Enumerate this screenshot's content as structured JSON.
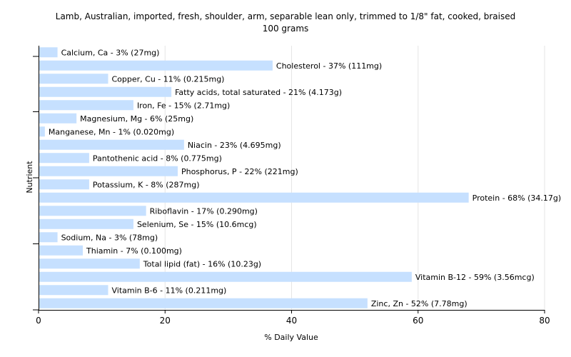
{
  "chart_data": {
    "type": "bar",
    "orientation": "horizontal",
    "title_line1": "Lamb, Australian, imported, fresh, shoulder, arm, separable lean only,   trimmed to 1/8\" fat, cooked, braised",
    "title_line2": "100 grams",
    "xlabel": "% Daily Value",
    "ylabel": "Nutrient",
    "xlim": [
      0,
      80
    ],
    "xticks": [
      0,
      20,
      40,
      60,
      80
    ],
    "grid": true,
    "bar_color": "#c6e0ff",
    "grid_color": "#e6e6e6",
    "categories": [
      "Calcium, Ca - 3% (27mg)",
      "Cholesterol - 37% (111mg)",
      "Copper, Cu - 11% (0.215mg)",
      "Fatty acids, total saturated - 21% (4.173g)",
      "Iron, Fe - 15% (2.71mg)",
      "Magnesium, Mg - 6% (25mg)",
      "Manganese, Mn - 1% (0.020mg)",
      "Niacin - 23% (4.695mg)",
      "Pantothenic acid - 8% (0.775mg)",
      "Phosphorus, P - 22% (221mg)",
      "Potassium, K - 8% (287mg)",
      "Protein - 68% (34.17g)",
      "Riboflavin - 17% (0.290mg)",
      "Selenium, Se - 15% (10.6mcg)",
      "Sodium, Na - 3% (78mg)",
      "Thiamin - 7% (0.100mg)",
      "Total lipid (fat) - 16% (10.23g)",
      "Vitamin B-12 - 59% (3.56mcg)",
      "Vitamin B-6 - 11% (0.211mg)",
      "Zinc, Zn - 52% (7.78mg)"
    ],
    "values": [
      3,
      37,
      11,
      21,
      15,
      6,
      1,
      23,
      8,
      22,
      8,
      68,
      17,
      15,
      3,
      7,
      16,
      59,
      11,
      52
    ]
  }
}
